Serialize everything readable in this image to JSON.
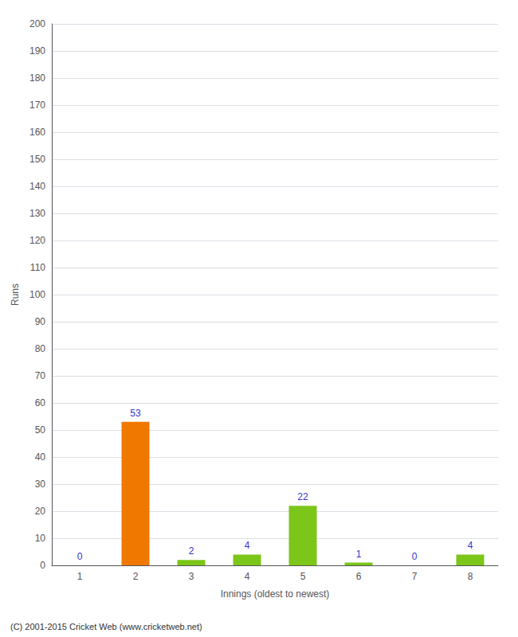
{
  "chart_data": {
    "type": "bar",
    "categories": [
      "1",
      "2",
      "3",
      "4",
      "5",
      "6",
      "7",
      "8"
    ],
    "values": [
      0,
      53,
      2,
      4,
      22,
      1,
      0,
      4
    ],
    "colors": [
      "#7bc618",
      "#f07800",
      "#7bc618",
      "#7bc618",
      "#7bc618",
      "#7bc618",
      "#7bc618",
      "#7bc618"
    ],
    "xlabel": "Innings (oldest to newest)",
    "ylabel": "Runs",
    "ylim": [
      0,
      200
    ],
    "yticks": [
      0,
      10,
      20,
      30,
      40,
      50,
      60,
      70,
      80,
      90,
      100,
      110,
      120,
      130,
      140,
      150,
      160,
      170,
      180,
      190,
      200
    ],
    "grid": true,
    "data_labels": true,
    "annotations": [
      "(C) 2001-2015 Cricket Web (www.cricketweb.net)"
    ]
  }
}
